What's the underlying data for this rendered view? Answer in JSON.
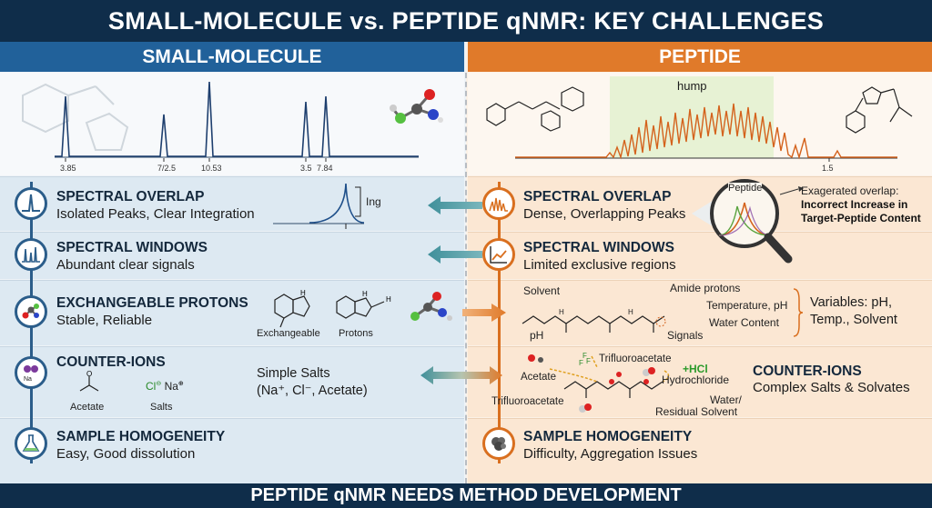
{
  "title": "SMALL-MOLECULE vs. PEPTIDE qNMR: KEY CHALLENGES",
  "footer": "PEPTIDE qNMR NEEDS METHOD DEVELOPMENT",
  "columns": {
    "left": "SMALL-MOLECULE",
    "right": "PEPTIDE"
  },
  "spectra": {
    "left_ticks": [
      "3.85",
      "7/2.5",
      "10.53",
      "3.5",
      "7.84"
    ],
    "hump_label": "hump",
    "right_tick": "1.5"
  },
  "rows": [
    {
      "left_title": "SPECTRAL OVERLAP",
      "left_sub": "Isolated Peaks, Clear Integration",
      "right_title": "SPECTRAL OVERLAP",
      "right_sub": "Dense, Overlapping Peaks"
    },
    {
      "left_title": "SPECTRAL WINDOWS",
      "left_sub": "Abundant clear signals",
      "right_title": "SPECTRAL WINDOWS",
      "right_sub": "Limited exclusive regions"
    },
    {
      "left_title": "EXCHANGEABLE PROTONS",
      "left_sub": "Stable, Reliable",
      "right_title": "",
      "right_sub": ""
    },
    {
      "left_title": "COUNTER-IONS",
      "left_sub": "",
      "right_title": "COUNTER-IONS",
      "right_sub": "Complex Salts & Solvates"
    },
    {
      "left_title": "SAMPLE HOMOGENEITY",
      "left_sub": "Easy, Good dissolution",
      "right_title": "SAMPLE HOMOGENEITY",
      "right_sub": "Difficulty, Aggregation Issues"
    }
  ],
  "overlap": {
    "integration_label": "Ing",
    "magnifier_label": "Peptide",
    "note_line1": "Exagerated overlap:",
    "note_line2": "Incorrect Increase in",
    "note_line3": "Target-Peptide Content"
  },
  "exchangeable": {
    "label_exchangeable": "Exchangeable",
    "label_protons": "Protons",
    "solvent": "Solvent",
    "ph": "pH",
    "amide_protons": "Amide protons",
    "temperature_ph": "Temperature, pH",
    "water_content": "Water Content",
    "signals": "Signals",
    "variables_line1": "Variables: pH,",
    "variables_line2": "Temp., Solvent"
  },
  "counter_ions": {
    "left_acetate": "Acetate",
    "left_salts": "Salts",
    "left_cl": "Cl",
    "left_na": "Na",
    "left_na_icon": "Na",
    "simple_salts_line1": "Simple Salts",
    "simple_salts_line2": "(Na⁺, Cl⁻, Acetate)",
    "acetate": "Acetate",
    "trifluoroacetate_top": "Trifluoroacetate",
    "trifluoroacetate_bottom": "Trifluoroacetate",
    "hcl": "+HCl",
    "hydrochloride": "Hydrochloride",
    "water_line1": "Water/",
    "water_line2": "Residual Solvent"
  },
  "colors": {
    "navy": "#0f2d4a",
    "blue": "#21619a",
    "orange": "#e07a2a",
    "teal": "#3f8f9a"
  }
}
